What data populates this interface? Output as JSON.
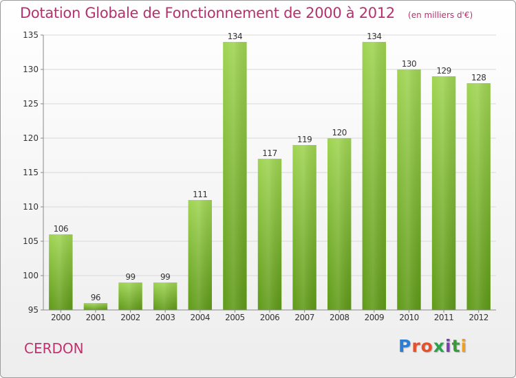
{
  "title": "Dotation Globale de Fonctionnement de 2000 à 2012",
  "subtitle": "(en milliers d'€)",
  "place": "CERDON",
  "brand": {
    "text": "Proxiti",
    "letter_colors": [
      "#2a7fd4",
      "#e8502a",
      "#e8502a",
      "#2aa34a",
      "#7a3fb0",
      "#3a9a3a",
      "#f0a020"
    ]
  },
  "colors": {
    "title": "#b5306e",
    "bar_top": "#9fd452",
    "bar_bottom": "#5f9a18",
    "grid": "#d8d8d8"
  },
  "chart_data": {
    "type": "bar",
    "title": "Dotation Globale de Fonctionnement de 2000 à 2012",
    "subtitle": "(en milliers d'€)",
    "categories": [
      "2000",
      "2001",
      "2002",
      "2003",
      "2004",
      "2005",
      "2006",
      "2007",
      "2008",
      "2009",
      "2010",
      "2011",
      "2012"
    ],
    "values": [
      106,
      96,
      99,
      99,
      111,
      134,
      117,
      119,
      120,
      134,
      130,
      129,
      128
    ],
    "ylim": [
      95,
      135
    ],
    "yticks": [
      95,
      100,
      105,
      110,
      115,
      120,
      125,
      130,
      135
    ],
    "grid": true
  }
}
